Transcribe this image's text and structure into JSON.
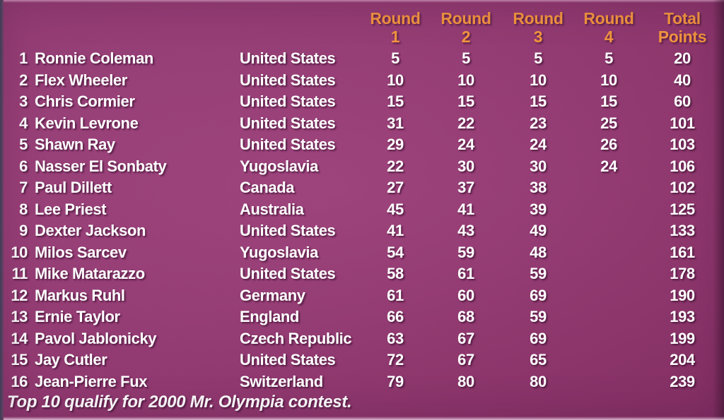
{
  "colors": {
    "background": "#993a76",
    "header_text": "#f2953f",
    "body_text": "#ffffff",
    "left_edge": "#3d3c55"
  },
  "table": {
    "headers": {
      "round_label": "Round",
      "round_numbers": [
        "1",
        "2",
        "3",
        "4"
      ],
      "total_label": "Total",
      "points_label": "Points"
    },
    "rows": [
      {
        "rank": "1",
        "name": "Ronnie Coleman",
        "country": "United States",
        "r1": "5",
        "r2": "5",
        "r3": "5",
        "r4": "5",
        "total": "20"
      },
      {
        "rank": "2",
        "name": "Flex Wheeler",
        "country": "United States",
        "r1": "10",
        "r2": "10",
        "r3": "10",
        "r4": "10",
        "total": "40"
      },
      {
        "rank": "3",
        "name": "Chris Cormier",
        "country": "United States",
        "r1": "15",
        "r2": "15",
        "r3": "15",
        "r4": "15",
        "total": "60"
      },
      {
        "rank": "4",
        "name": "Kevin Levrone",
        "country": "United States",
        "r1": "31",
        "r2": "22",
        "r3": "23",
        "r4": "25",
        "total": "101"
      },
      {
        "rank": "5",
        "name": "Shawn Ray",
        "country": "United States",
        "r1": "29",
        "r2": "24",
        "r3": "24",
        "r4": "26",
        "total": "103"
      },
      {
        "rank": "6",
        "name": "Nasser El Sonbaty",
        "country": "Yugoslavia",
        "r1": "22",
        "r2": "30",
        "r3": "30",
        "r4": "24",
        "total": "106"
      },
      {
        "rank": "7",
        "name": "Paul Dillett",
        "country": "Canada",
        "r1": "27",
        "r2": "37",
        "r3": "38",
        "r4": "",
        "total": "102"
      },
      {
        "rank": "8",
        "name": "Lee Priest",
        "country": "Australia",
        "r1": "45",
        "r2": "41",
        "r3": "39",
        "r4": "",
        "total": "125"
      },
      {
        "rank": "9",
        "name": "Dexter Jackson",
        "country": "United States",
        "r1": "41",
        "r2": "43",
        "r3": "49",
        "r4": "",
        "total": "133"
      },
      {
        "rank": "10",
        "name": "Milos Sarcev",
        "country": "Yugoslavia",
        "r1": "54",
        "r2": "59",
        "r3": "48",
        "r4": "",
        "total": "161"
      },
      {
        "rank": "11",
        "name": "Mike Matarazzo",
        "country": "United States",
        "r1": "58",
        "r2": "61",
        "r3": "59",
        "r4": "",
        "total": "178"
      },
      {
        "rank": "12",
        "name": "Markus Ruhl",
        "country": "Germany",
        "r1": "61",
        "r2": "60",
        "r3": "69",
        "r4": "",
        "total": "190"
      },
      {
        "rank": "13",
        "name": "Ernie Taylor",
        "country": "England",
        "r1": "66",
        "r2": "68",
        "r3": "59",
        "r4": "",
        "total": "193"
      },
      {
        "rank": "14",
        "name": "Pavol Jablonicky",
        "country": "Czech Republic",
        "r1": "63",
        "r2": "67",
        "r3": "69",
        "r4": "",
        "total": "199"
      },
      {
        "rank": "15",
        "name": "Jay Cutler",
        "country": "United States",
        "r1": "72",
        "r2": "67",
        "r3": "65",
        "r4": "",
        "total": "204"
      },
      {
        "rank": "16",
        "name": "Jean-Pierre Fux",
        "country": "Switzerland",
        "r1": "79",
        "r2": "80",
        "r3": "80",
        "r4": "",
        "total": "239"
      }
    ]
  },
  "footer": {
    "note": "Top 10 qualify for 2000 Mr. Olympia contest."
  }
}
